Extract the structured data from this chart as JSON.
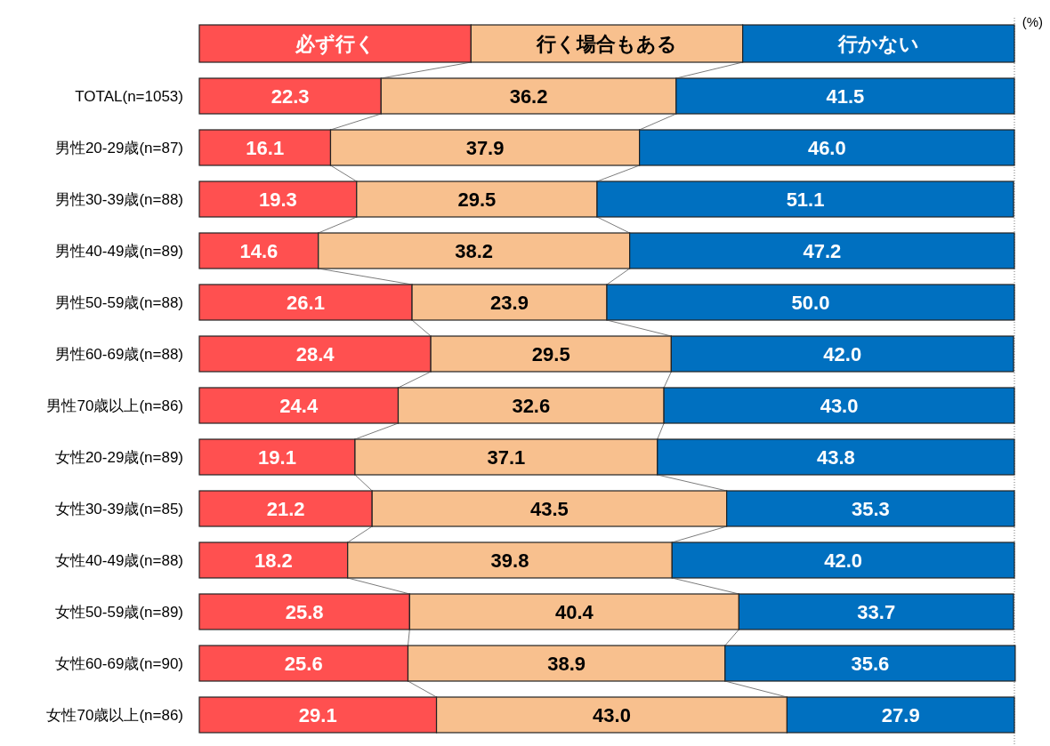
{
  "chart_data": {
    "type": "bar",
    "orientation": "horizontal",
    "stacked": true,
    "categories": [
      "TOTAL(n=1053)",
      "男性20-29歳(n=87)",
      "男性30-39歳(n=88)",
      "男性40-49歳(n=89)",
      "男性50-59歳(n=88)",
      "男性60-69歳(n=88)",
      "男性70歳以上(n=86)",
      "女性20-29歳(n=89)",
      "女性30-39歳(n=85)",
      "女性40-49歳(n=88)",
      "女性50-59歳(n=89)",
      "女性60-69歳(n=90)",
      "女性70歳以上(n=86)"
    ],
    "series": [
      {
        "name": "必ず行く",
        "color": "#ff5050",
        "values": [
          22.3,
          16.1,
          19.3,
          14.6,
          26.1,
          28.4,
          24.4,
          19.1,
          21.2,
          18.2,
          25.8,
          25.6,
          29.1
        ],
        "value_labels": [
          "22.3",
          "16.1",
          "19.3",
          "14.6",
          "26.1",
          "28.4",
          "24.4",
          "19.1",
          "21.2",
          "18.2",
          "25.8",
          "25.6",
          "29.1"
        ]
      },
      {
        "name": "行く場合もある",
        "color": "#f8c08e",
        "values": [
          36.2,
          37.9,
          29.5,
          38.2,
          23.9,
          29.5,
          32.6,
          37.1,
          43.5,
          39.8,
          40.4,
          38.9,
          43.0
        ],
        "value_labels": [
          "36.2",
          "37.9",
          "29.5",
          "38.2",
          "23.9",
          "29.5",
          "32.6",
          "37.1",
          "43.5",
          "39.8",
          "40.4",
          "38.9",
          "43.0"
        ]
      },
      {
        "name": "行かない",
        "color": "#0070c0",
        "values": [
          41.5,
          46.0,
          51.1,
          47.2,
          50.0,
          42.0,
          43.0,
          43.8,
          35.3,
          42.0,
          33.7,
          35.6,
          27.9
        ],
        "value_labels": [
          "41.5",
          "46.0",
          "51.1",
          "47.2",
          "50.0",
          "42.0",
          "43.0",
          "43.8",
          "35.3",
          "42.0",
          "33.7",
          "35.6",
          "27.9"
        ]
      }
    ],
    "xlim": [
      0,
      100
    ],
    "tick_labels": "y",
    "legend": "top",
    "annotations": [
      "(%)"
    ]
  }
}
